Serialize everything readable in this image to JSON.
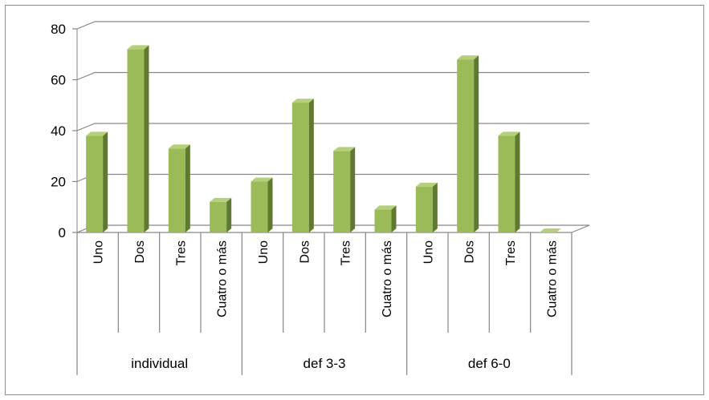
{
  "chart_data": {
    "type": "bar",
    "style": "3d-column",
    "groups": [
      {
        "name": "individual",
        "categories": [
          "Uno",
          "Dos",
          "Tres",
          "Cuatro o más"
        ],
        "values": [
          38,
          72,
          33,
          12
        ]
      },
      {
        "name": "def 3-3",
        "categories": [
          "Uno",
          "Dos",
          "Tres",
          "Cuatro o más"
        ],
        "values": [
          20,
          51,
          32,
          9
        ]
      },
      {
        "name": "def 6-0",
        "categories": [
          "Uno",
          "Dos",
          "Tres",
          "Cuatro o más"
        ],
        "values": [
          18,
          68,
          38,
          0
        ]
      }
    ],
    "y_ticks": [
      "0",
      "20",
      "40",
      "60",
      "80"
    ],
    "ylim": [
      0,
      80
    ],
    "grid": true,
    "legend": "none",
    "title": "",
    "xlabel": "",
    "ylabel": "",
    "colors": {
      "bar_front": "#9bbb59",
      "bar_side": "#5f7a30",
      "bar_top": "#b5d07a",
      "gridline": "#868686",
      "axis": "#868686"
    }
  }
}
